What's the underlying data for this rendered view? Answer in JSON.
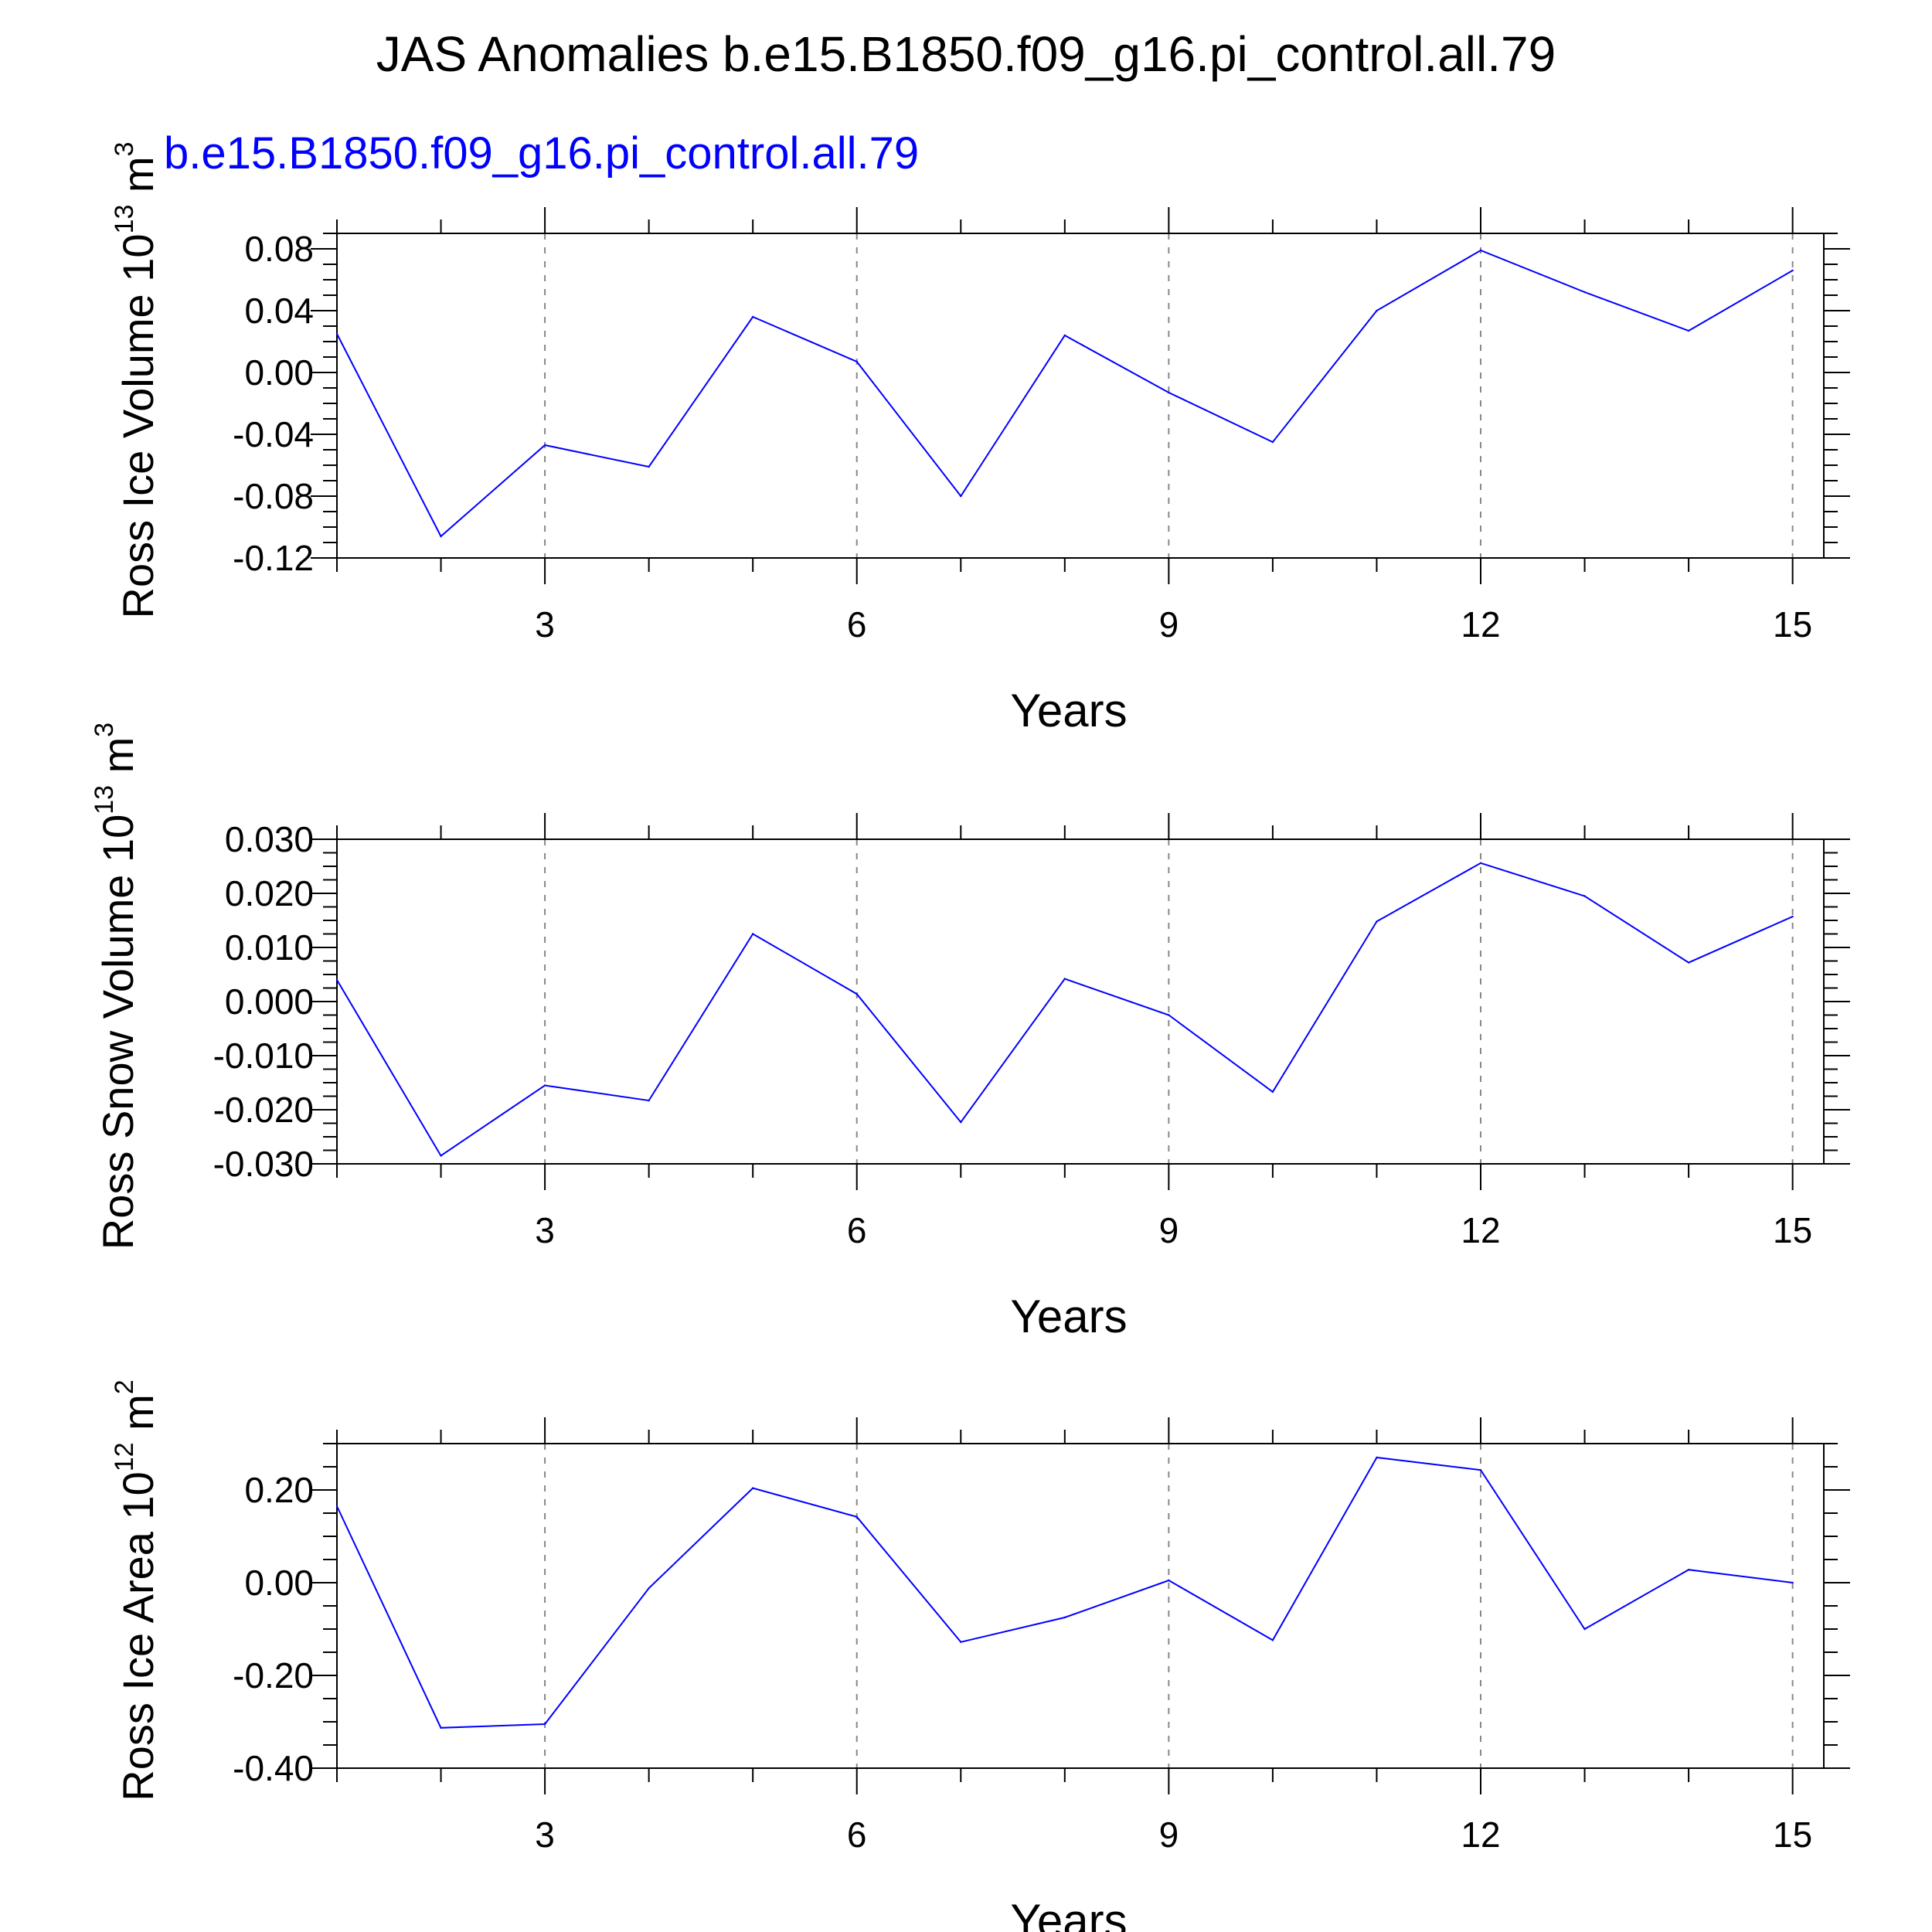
{
  "title": "JAS Anomalies b.e15.B1850.f09_g16.pi_control.all.79",
  "subtitle": "b.e15.B1850.f09_g16.pi_control.all.79",
  "colors": {
    "series": "#0000ff",
    "axis": "#000000",
    "grid": "#888888",
    "subtitle": "#0000ff"
  },
  "chart_data": [
    {
      "type": "line",
      "ylabel_text": "Ross Ice Volume 10",
      "ylabel_exp": "13",
      "ylabel_unit": " m",
      "ylabel_unit_exp": "3",
      "xlabel": "Years",
      "x": [
        1,
        2,
        3,
        4,
        5,
        6,
        7,
        8,
        9,
        10,
        11,
        12,
        13,
        14,
        15
      ],
      "series": [
        {
          "name": "b.e15.B1850.f09_g16.pi_control.all.79",
          "values": [
            0.025,
            -0.106,
            -0.047,
            -0.061,
            0.036,
            0.007,
            -0.08,
            0.024,
            -0.013,
            -0.045,
            0.04,
            0.079,
            0.052,
            0.027,
            0.066
          ]
        }
      ],
      "xlim": [
        1,
        15.3
      ],
      "ylim": [
        -0.12,
        0.09
      ],
      "xticks": [
        3,
        6,
        9,
        12,
        15
      ],
      "xtick_labels": [
        "3",
        "6",
        "9",
        "12",
        "15"
      ],
      "yticks": [
        -0.12,
        -0.08,
        -0.04,
        0.0,
        0.04,
        0.08
      ],
      "ytick_labels": [
        "-0.12",
        "-0.08",
        "-0.04",
        "0.00",
        "0.04",
        "0.08"
      ],
      "yminor_step": 0.01,
      "grid": true
    },
    {
      "type": "line",
      "ylabel_text": "Ross Snow Volume 10",
      "ylabel_exp": "13",
      "ylabel_unit": " m",
      "ylabel_unit_exp": "3",
      "xlabel": "Years",
      "x": [
        1,
        2,
        3,
        4,
        5,
        6,
        7,
        8,
        9,
        10,
        11,
        12,
        13,
        14,
        15
      ],
      "series": [
        {
          "name": "b.e15.B1850.f09_g16.pi_control.all.79",
          "values": [
            0.004,
            -0.0285,
            -0.0155,
            -0.0183,
            0.0125,
            0.0014,
            -0.0223,
            0.0042,
            -0.0025,
            -0.0167,
            0.0148,
            0.0256,
            0.0195,
            0.0072,
            0.0157
          ]
        }
      ],
      "xlim": [
        1,
        15.3
      ],
      "ylim": [
        -0.03,
        0.03
      ],
      "xticks": [
        3,
        6,
        9,
        12,
        15
      ],
      "xtick_labels": [
        "3",
        "6",
        "9",
        "12",
        "15"
      ],
      "yticks": [
        -0.03,
        -0.02,
        -0.01,
        0.0,
        0.01,
        0.02,
        0.03
      ],
      "ytick_labels": [
        "-0.030",
        "-0.020",
        "-0.010",
        "0.000",
        "0.010",
        "0.020",
        "0.030"
      ],
      "yminor_step": 0.0025,
      "grid": true
    },
    {
      "type": "line",
      "ylabel_text": "Ross Ice Area 10",
      "ylabel_exp": "12",
      "ylabel_unit": " m",
      "ylabel_unit_exp": "2",
      "xlabel": "Years",
      "x": [
        1,
        2,
        3,
        4,
        5,
        6,
        7,
        8,
        9,
        10,
        11,
        12,
        13,
        14,
        15
      ],
      "series": [
        {
          "name": "b.e15.B1850.f09_g16.pi_control.all.79",
          "values": [
            0.165,
            -0.313,
            -0.305,
            -0.012,
            0.204,
            0.142,
            -0.128,
            -0.075,
            0.005,
            -0.124,
            0.27,
            0.243,
            -0.1,
            0.028,
            0.0
          ]
        }
      ],
      "xlim": [
        1,
        15.3
      ],
      "ylim": [
        -0.4,
        0.3
      ],
      "xticks": [
        3,
        6,
        9,
        12,
        15
      ],
      "xtick_labels": [
        "3",
        "6",
        "9",
        "12",
        "15"
      ],
      "yticks": [
        -0.4,
        -0.2,
        0.0,
        0.2
      ],
      "ytick_labels": [
        "-0.40",
        "-0.20",
        "0.00",
        "0.20"
      ],
      "yminor_step": 0.05,
      "grid": true
    }
  ]
}
